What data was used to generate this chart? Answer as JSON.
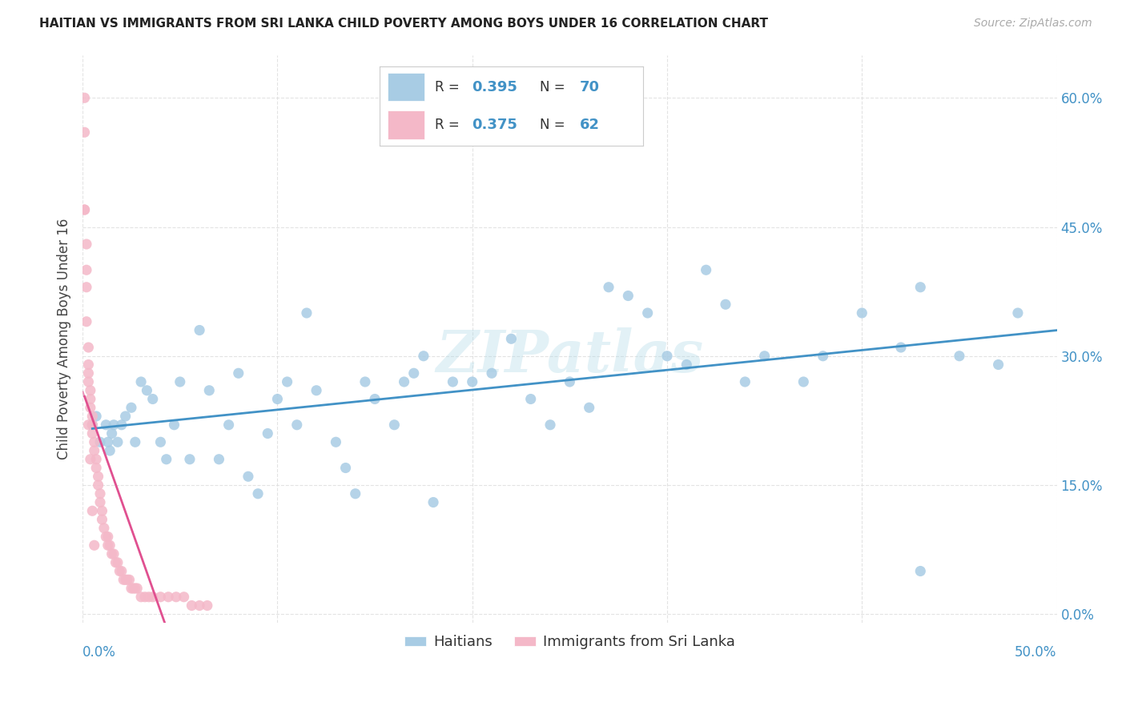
{
  "title": "HAITIAN VS IMMIGRANTS FROM SRI LANKA CHILD POVERTY AMONG BOYS UNDER 16 CORRELATION CHART",
  "source": "Source: ZipAtlas.com",
  "ylabel": "Child Poverty Among Boys Under 16",
  "xlim": [
    0,
    0.5
  ],
  "ylim": [
    -0.01,
    0.65
  ],
  "ytick_positions": [
    0.0,
    0.15,
    0.3,
    0.45,
    0.6
  ],
  "ytick_labels": [
    "0.0%",
    "15.0%",
    "30.0%",
    "45.0%",
    "60.0%"
  ],
  "xtick_positions": [
    0.0,
    0.1,
    0.2,
    0.3,
    0.4,
    0.5
  ],
  "xtick_labels": [
    "",
    "",
    "",
    "",
    "",
    ""
  ],
  "xlim_label_left": "0.0%",
  "xlim_label_right": "50.0%",
  "blue_color": "#a8cce4",
  "pink_color": "#f4b8c8",
  "line_blue": "#4292c6",
  "line_pink": "#e05090",
  "tick_color": "#4292c6",
  "watermark": "ZIPatlas",
  "haitians_x": [
    0.005,
    0.007,
    0.009,
    0.012,
    0.013,
    0.014,
    0.015,
    0.016,
    0.018,
    0.02,
    0.022,
    0.025,
    0.027,
    0.03,
    0.033,
    0.036,
    0.04,
    0.043,
    0.047,
    0.05,
    0.055,
    0.06,
    0.065,
    0.07,
    0.075,
    0.08,
    0.085,
    0.09,
    0.095,
    0.1,
    0.105,
    0.11,
    0.115,
    0.12,
    0.13,
    0.135,
    0.14,
    0.145,
    0.15,
    0.16,
    0.165,
    0.17,
    0.175,
    0.18,
    0.19,
    0.2,
    0.21,
    0.22,
    0.23,
    0.24,
    0.25,
    0.26,
    0.27,
    0.28,
    0.29,
    0.3,
    0.31,
    0.32,
    0.33,
    0.34,
    0.35,
    0.37,
    0.38,
    0.4,
    0.42,
    0.43,
    0.45,
    0.47,
    0.48,
    0.43
  ],
  "haitians_y": [
    0.22,
    0.23,
    0.2,
    0.22,
    0.2,
    0.19,
    0.21,
    0.22,
    0.2,
    0.22,
    0.23,
    0.24,
    0.2,
    0.27,
    0.26,
    0.25,
    0.2,
    0.18,
    0.22,
    0.27,
    0.18,
    0.33,
    0.26,
    0.18,
    0.22,
    0.28,
    0.16,
    0.14,
    0.21,
    0.25,
    0.27,
    0.22,
    0.35,
    0.26,
    0.2,
    0.17,
    0.14,
    0.27,
    0.25,
    0.22,
    0.27,
    0.28,
    0.3,
    0.13,
    0.27,
    0.27,
    0.28,
    0.32,
    0.25,
    0.22,
    0.27,
    0.24,
    0.38,
    0.37,
    0.35,
    0.3,
    0.29,
    0.4,
    0.36,
    0.27,
    0.3,
    0.27,
    0.3,
    0.35,
    0.31,
    0.38,
    0.3,
    0.29,
    0.35,
    0.05
  ],
  "srilanka_x": [
    0.001,
    0.001,
    0.001,
    0.002,
    0.002,
    0.002,
    0.003,
    0.003,
    0.003,
    0.003,
    0.004,
    0.004,
    0.004,
    0.005,
    0.005,
    0.005,
    0.006,
    0.006,
    0.007,
    0.007,
    0.008,
    0.008,
    0.009,
    0.009,
    0.01,
    0.01,
    0.011,
    0.012,
    0.013,
    0.013,
    0.014,
    0.015,
    0.016,
    0.017,
    0.018,
    0.019,
    0.02,
    0.021,
    0.022,
    0.023,
    0.024,
    0.025,
    0.026,
    0.027,
    0.028,
    0.03,
    0.032,
    0.034,
    0.036,
    0.04,
    0.044,
    0.048,
    0.052,
    0.056,
    0.06,
    0.064,
    0.001,
    0.002,
    0.003,
    0.004,
    0.005,
    0.006
  ],
  "srilanka_y": [
    0.6,
    0.56,
    0.47,
    0.43,
    0.4,
    0.38,
    0.31,
    0.29,
    0.28,
    0.27,
    0.26,
    0.25,
    0.24,
    0.23,
    0.22,
    0.21,
    0.2,
    0.19,
    0.18,
    0.17,
    0.16,
    0.15,
    0.14,
    0.13,
    0.12,
    0.11,
    0.1,
    0.09,
    0.09,
    0.08,
    0.08,
    0.07,
    0.07,
    0.06,
    0.06,
    0.05,
    0.05,
    0.04,
    0.04,
    0.04,
    0.04,
    0.03,
    0.03,
    0.03,
    0.03,
    0.02,
    0.02,
    0.02,
    0.02,
    0.02,
    0.02,
    0.02,
    0.02,
    0.01,
    0.01,
    0.01,
    0.47,
    0.34,
    0.22,
    0.18,
    0.12,
    0.08
  ],
  "background_color": "#ffffff",
  "grid_color": "#dddddd"
}
